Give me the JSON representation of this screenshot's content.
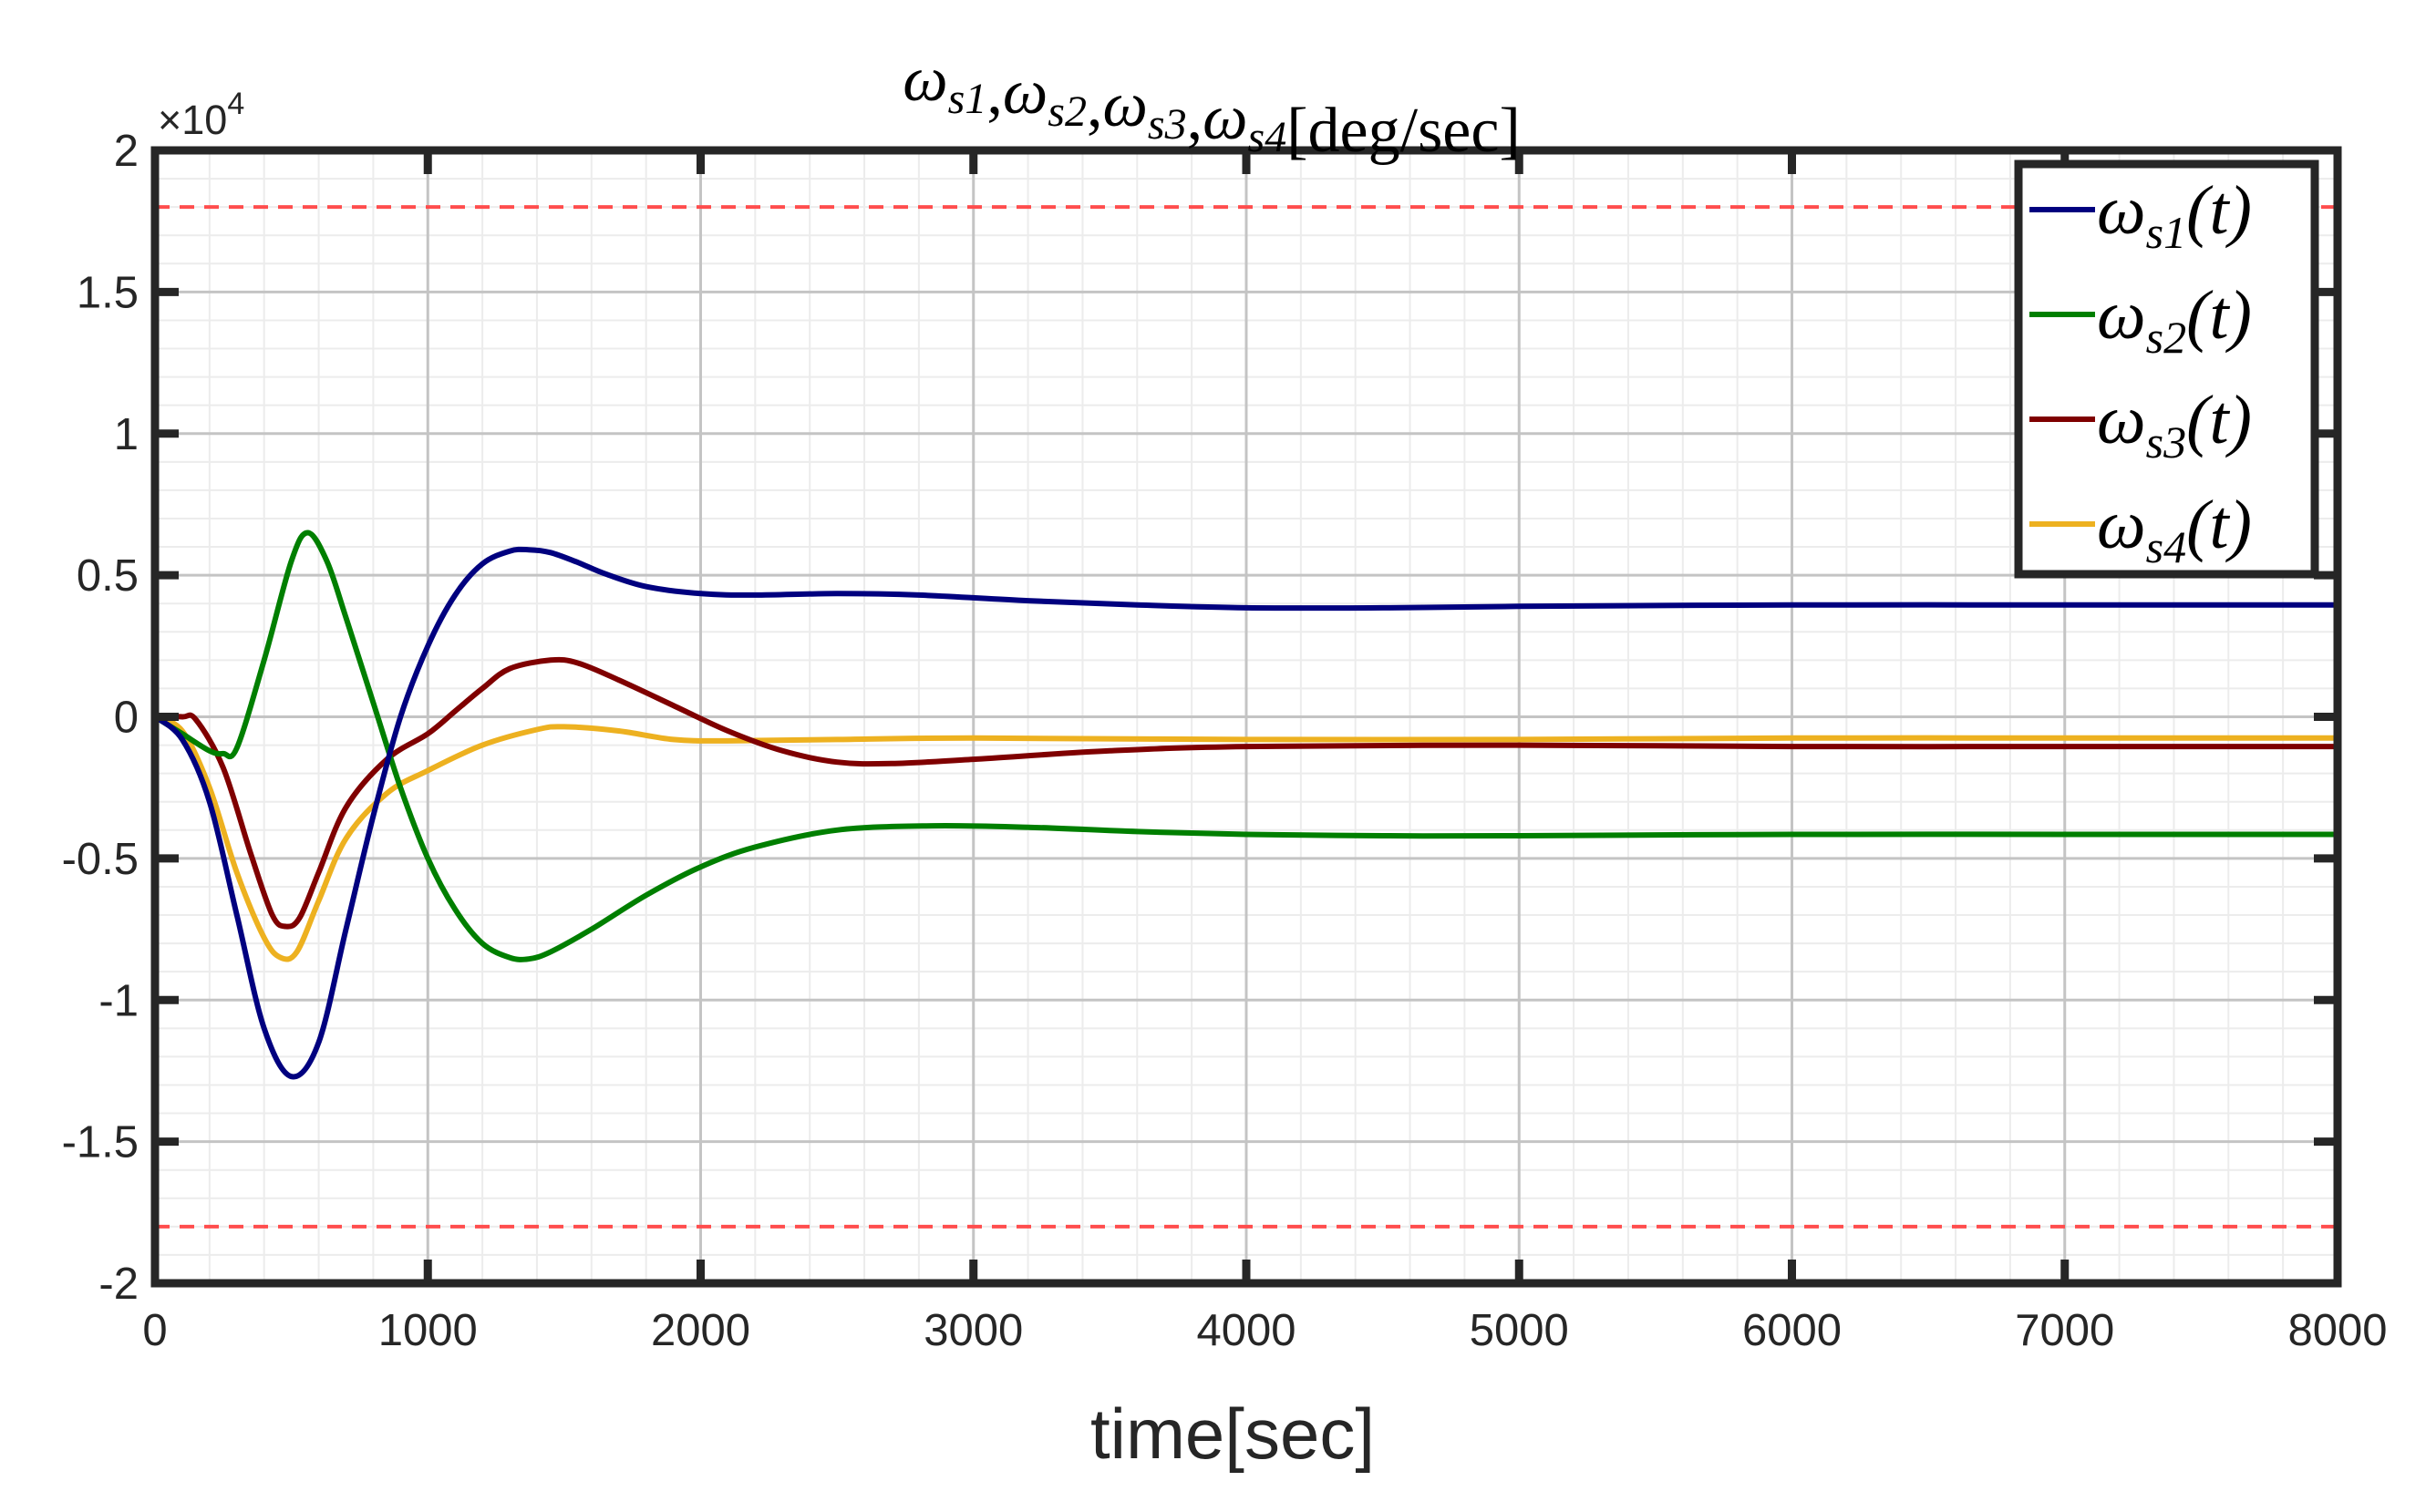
{
  "chart_data": {
    "type": "line",
    "title": {
      "parts": [
        {
          "sym": "ω",
          "sub": "s1"
        },
        {
          "sym": "ω",
          "sub": "s2"
        },
        {
          "sym": "ω",
          "sub": "s3"
        },
        {
          "sym": "ω",
          "sub": "s4"
        }
      ],
      "separator": ",",
      "units": "[deg/sec]"
    },
    "xlabel": "time[sec]",
    "ylabel": "",
    "xlim": [
      0,
      8000
    ],
    "ylim": [
      -20000,
      20000
    ],
    "y_exponent": "×10",
    "y_exponent_power": "4",
    "x_ticks": [
      0,
      1000,
      2000,
      3000,
      4000,
      5000,
      6000,
      7000,
      8000
    ],
    "x_tick_labels": [
      "0",
      "1000",
      "2000",
      "3000",
      "4000",
      "5000",
      "6000",
      "7000",
      "8000"
    ],
    "y_ticks": [
      -20000,
      -15000,
      -10000,
      -5000,
      0,
      5000,
      10000,
      15000,
      20000
    ],
    "y_tick_labels": [
      "-2",
      "-1.5",
      "-1",
      "-0.5",
      "0",
      "0.5",
      "1",
      "1.5",
      "2"
    ],
    "grid": true,
    "minor_grid": true,
    "legend_position": "top-right",
    "limits": {
      "values": [
        18000,
        -18000
      ],
      "color": "#ff4d4d",
      "style": "dashed"
    },
    "series": [
      {
        "name": "ω_s1(t)",
        "sym": "ω",
        "sub": "s1",
        "arg": "(t)",
        "color": "#00007f",
        "points": [
          [
            0,
            0
          ],
          [
            100,
            -800
          ],
          [
            200,
            -3000
          ],
          [
            300,
            -7000
          ],
          [
            400,
            -11000
          ],
          [
            500,
            -12700
          ],
          [
            600,
            -11500
          ],
          [
            700,
            -7500
          ],
          [
            800,
            -3500
          ],
          [
            900,
            0
          ],
          [
            1000,
            2500
          ],
          [
            1100,
            4300
          ],
          [
            1200,
            5400
          ],
          [
            1300,
            5850
          ],
          [
            1370,
            5900
          ],
          [
            1450,
            5800
          ],
          [
            1550,
            5450
          ],
          [
            1650,
            5050
          ],
          [
            1800,
            4600
          ],
          [
            2000,
            4350
          ],
          [
            2200,
            4300
          ],
          [
            2500,
            4350
          ],
          [
            2800,
            4300
          ],
          [
            3200,
            4100
          ],
          [
            3600,
            3950
          ],
          [
            4000,
            3850
          ],
          [
            4500,
            3850
          ],
          [
            5000,
            3900
          ],
          [
            6000,
            3950
          ],
          [
            7000,
            3950
          ],
          [
            8000,
            3950
          ]
        ]
      },
      {
        "name": "ω_s2(t)",
        "sym": "ω",
        "sub": "s2",
        "arg": "(t)",
        "color": "#007f00",
        "points": [
          [
            0,
            0
          ],
          [
            100,
            -600
          ],
          [
            200,
            -1200
          ],
          [
            250,
            -1300
          ],
          [
            300,
            -1100
          ],
          [
            400,
            2000
          ],
          [
            500,
            5500
          ],
          [
            560,
            6500
          ],
          [
            630,
            5500
          ],
          [
            700,
            3500
          ],
          [
            800,
            500
          ],
          [
            900,
            -2500
          ],
          [
            1000,
            -5000
          ],
          [
            1100,
            -6800
          ],
          [
            1200,
            -8000
          ],
          [
            1300,
            -8500
          ],
          [
            1370,
            -8550
          ],
          [
            1450,
            -8300
          ],
          [
            1600,
            -7500
          ],
          [
            1800,
            -6300
          ],
          [
            2000,
            -5300
          ],
          [
            2200,
            -4600
          ],
          [
            2500,
            -4000
          ],
          [
            2850,
            -3850
          ],
          [
            3200,
            -3900
          ],
          [
            3600,
            -4050
          ],
          [
            4000,
            -4150
          ],
          [
            4500,
            -4200
          ],
          [
            5000,
            -4200
          ],
          [
            6000,
            -4150
          ],
          [
            7000,
            -4150
          ],
          [
            8000,
            -4150
          ]
        ]
      },
      {
        "name": "ω_s3(t)",
        "sym": "ω",
        "sub": "s3",
        "arg": "(t)",
        "color": "#7f0000",
        "points": [
          [
            0,
            0
          ],
          [
            100,
            0
          ],
          [
            150,
            -100
          ],
          [
            250,
            -1800
          ],
          [
            350,
            -4800
          ],
          [
            430,
            -7000
          ],
          [
            480,
            -7400
          ],
          [
            530,
            -7100
          ],
          [
            600,
            -5500
          ],
          [
            700,
            -3200
          ],
          [
            850,
            -1500
          ],
          [
            1000,
            -600
          ],
          [
            1100,
            200
          ],
          [
            1200,
            1000
          ],
          [
            1300,
            1700
          ],
          [
            1450,
            2000
          ],
          [
            1550,
            1900
          ],
          [
            1700,
            1300
          ],
          [
            1900,
            400
          ],
          [
            2100,
            -500
          ],
          [
            2300,
            -1200
          ],
          [
            2500,
            -1600
          ],
          [
            2700,
            -1650
          ],
          [
            3000,
            -1500
          ],
          [
            3500,
            -1200
          ],
          [
            4000,
            -1050
          ],
          [
            5000,
            -1000
          ],
          [
            6000,
            -1050
          ],
          [
            7000,
            -1050
          ],
          [
            8000,
            -1050
          ]
        ]
      },
      {
        "name": "ω_s4(t)",
        "sym": "ω",
        "sub": "s4",
        "arg": "(t)",
        "color": "#edb120",
        "points": [
          [
            0,
            0
          ],
          [
            100,
            -500
          ],
          [
            200,
            -2500
          ],
          [
            300,
            -5500
          ],
          [
            400,
            -7800
          ],
          [
            460,
            -8500
          ],
          [
            520,
            -8300
          ],
          [
            600,
            -6500
          ],
          [
            700,
            -4300
          ],
          [
            850,
            -2700
          ],
          [
            1000,
            -1900
          ],
          [
            1200,
            -1000
          ],
          [
            1400,
            -450
          ],
          [
            1500,
            -350
          ],
          [
            1700,
            -500
          ],
          [
            1900,
            -800
          ],
          [
            2100,
            -850
          ],
          [
            2500,
            -800
          ],
          [
            3000,
            -750
          ],
          [
            4000,
            -800
          ],
          [
            5000,
            -800
          ],
          [
            6000,
            -750
          ],
          [
            7000,
            -750
          ],
          [
            8000,
            -750
          ]
        ]
      }
    ]
  }
}
